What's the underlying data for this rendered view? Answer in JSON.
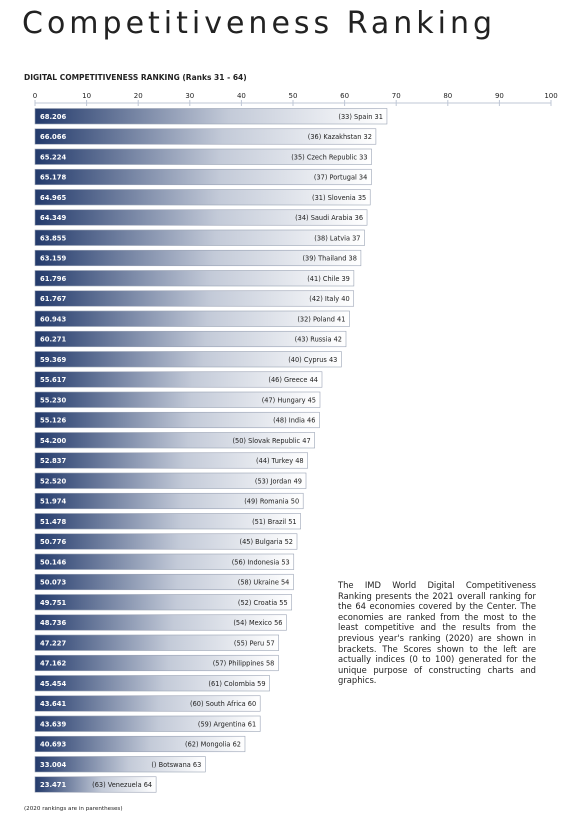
{
  "page": {
    "title": "Competitiveness Ranking",
    "footnote": "(2020 rankings are in parentheses)",
    "note": "The IMD World Digital Competitiveness Ranking presents the 2021 overall ranking for the 64 economies covered by the Center. The economies are ranked from the most to the least competitive and the results from the previous year's ranking (2020) are shown in brackets. The Scores shown to the left are actually indices (0 to 100) generated for the unique purpose of constructing charts and graphics."
  },
  "colors": {
    "bar_dark": "#233a6b",
    "bar_light": "#ffffff",
    "axis": "#bfc7d6",
    "text": "#222222"
  },
  "chart_data": {
    "type": "bar",
    "orientation": "horizontal",
    "title": "DIGITAL COMPETITIVENESS RANKING (Ranks 31 - 64)",
    "xlim": [
      0,
      100
    ],
    "xticks": [
      0,
      10,
      20,
      30,
      40,
      50,
      60,
      70,
      80,
      90,
      100
    ],
    "grid": false,
    "bars": [
      {
        "value": 68.206,
        "value_label": "68.206",
        "label": "(33) Spain 31"
      },
      {
        "value": 66.066,
        "value_label": "66.066",
        "label": "(36) Kazakhstan 32"
      },
      {
        "value": 65.224,
        "value_label": "65.224",
        "label": "(35) Czech Republic 33"
      },
      {
        "value": 65.178,
        "value_label": "65.178",
        "label": "(37) Portugal 34"
      },
      {
        "value": 64.965,
        "value_label": "64.965",
        "label": "(31) Slovenia 35"
      },
      {
        "value": 64.349,
        "value_label": "64.349",
        "label": "(34) Saudi Arabia 36"
      },
      {
        "value": 63.855,
        "value_label": "63.855",
        "label": "(38) Latvia 37"
      },
      {
        "value": 63.159,
        "value_label": "63.159",
        "label": "(39) Thailand 38"
      },
      {
        "value": 61.796,
        "value_label": "61.796",
        "label": "(41) Chile 39"
      },
      {
        "value": 61.767,
        "value_label": "61.767",
        "label": "(42) Italy 40"
      },
      {
        "value": 60.943,
        "value_label": "60.943",
        "label": "(32) Poland 41"
      },
      {
        "value": 60.271,
        "value_label": "60.271",
        "label": "(43) Russia 42"
      },
      {
        "value": 59.369,
        "value_label": "59.369",
        "label": "(40) Cyprus 43"
      },
      {
        "value": 55.617,
        "value_label": "55.617",
        "label": "(46) Greece 44"
      },
      {
        "value": 55.23,
        "value_label": "55.230",
        "label": "(47) Hungary 45"
      },
      {
        "value": 55.126,
        "value_label": "55.126",
        "label": "(48) India 46"
      },
      {
        "value": 54.2,
        "value_label": "54.200",
        "label": "(50) Slovak Republic 47"
      },
      {
        "value": 52.837,
        "value_label": "52.837",
        "label": "(44) Turkey 48"
      },
      {
        "value": 52.52,
        "value_label": "52.520",
        "label": "(53) Jordan 49"
      },
      {
        "value": 51.974,
        "value_label": "51.974",
        "label": "(49) Romania 50"
      },
      {
        "value": 51.478,
        "value_label": "51.478",
        "label": "(51) Brazil 51"
      },
      {
        "value": 50.776,
        "value_label": "50.776",
        "label": "(45) Bulgaria 52"
      },
      {
        "value": 50.146,
        "value_label": "50.146",
        "label": "(56) Indonesia 53"
      },
      {
        "value": 50.073,
        "value_label": "50.073",
        "label": "(58) Ukraine 54"
      },
      {
        "value": 49.751,
        "value_label": "49.751",
        "label": "(52) Croatia 55"
      },
      {
        "value": 48.736,
        "value_label": "48.736",
        "label": "(54) Mexico 56"
      },
      {
        "value": 47.227,
        "value_label": "47.227",
        "label": "(55) Peru 57"
      },
      {
        "value": 47.162,
        "value_label": "47.162",
        "label": "(57) Philippines 58"
      },
      {
        "value": 45.454,
        "value_label": "45.454",
        "label": "(61) Colombia 59"
      },
      {
        "value": 43.641,
        "value_label": "43.641",
        "label": "(60) South Africa 60"
      },
      {
        "value": 43.639,
        "value_label": "43.639",
        "label": "(59) Argentina 61"
      },
      {
        "value": 40.693,
        "value_label": "40.693",
        "label": "(62) Mongolia 62"
      },
      {
        "value": 33.004,
        "value_label": "33.004",
        "label": "() Botswana 63"
      },
      {
        "value": 23.471,
        "value_label": "23.471",
        "label": "(63) Venezuela 64"
      }
    ]
  }
}
